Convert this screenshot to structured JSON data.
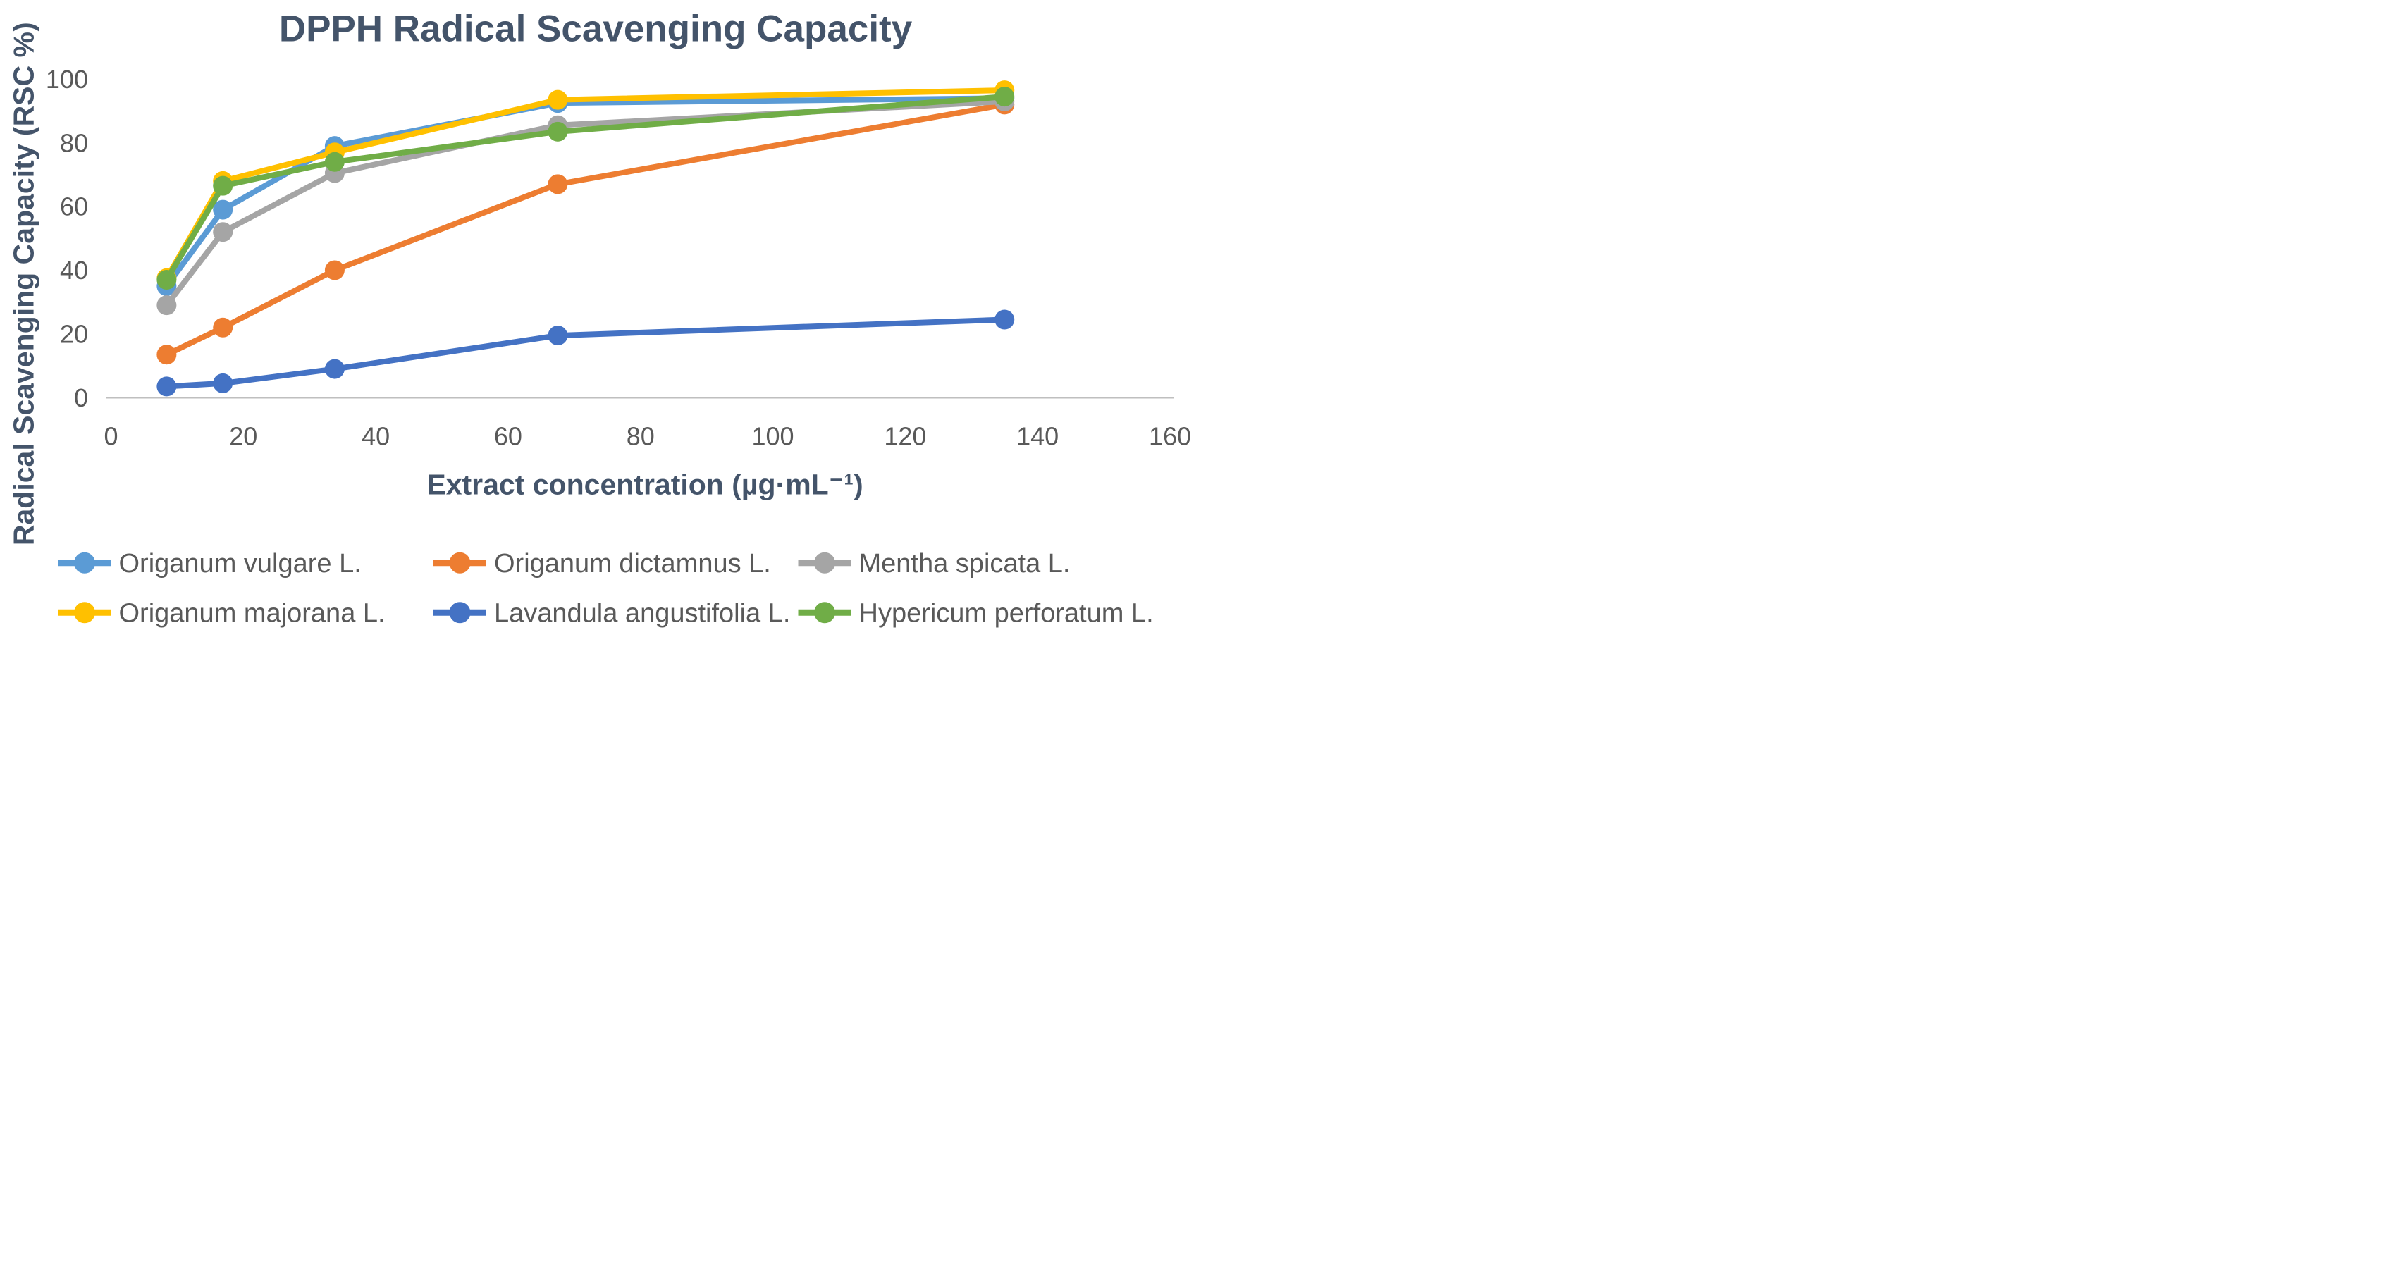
{
  "chart_data": {
    "type": "line",
    "title": "DPPH Radical Scavenging Capacity",
    "xlabel": "Extract concentration (µg·mL⁻¹)",
    "ylabel": "Radical Scavenging Capacity (RSC %)",
    "x": [
      8.4,
      16.9,
      33.8,
      67.5,
      135
    ],
    "xlim": [
      0,
      160
    ],
    "ylim": [
      0,
      100
    ],
    "x_ticks": [
      0,
      20,
      40,
      60,
      80,
      100,
      120,
      140,
      160
    ],
    "y_ticks": [
      0,
      20,
      40,
      60,
      80,
      100
    ],
    "grid": false,
    "legend_position": "bottom",
    "legend_rows": [
      [
        "Origanum vulgare L.",
        "Origanum dictamnus L.",
        "Mentha spicata L."
      ],
      [
        "Origanum majorana L.",
        "Lavandula angustifolia L.",
        "Hypericum perforatum L."
      ]
    ],
    "series": [
      {
        "name": "Origanum vulgare L.",
        "color": "#5B9BD5",
        "values": [
          35,
          59,
          79,
          92.5,
          94
        ]
      },
      {
        "name": "Origanum dictamnus L.",
        "color": "#ED7D31",
        "values": [
          13.5,
          22,
          40,
          67,
          92
        ]
      },
      {
        "name": "Mentha spicata L.",
        "color": "#A5A5A5",
        "values": [
          29,
          52,
          70.5,
          85.5,
          93
        ]
      },
      {
        "name": "Origanum majorana L.",
        "color": "#FFC000",
        "values": [
          37.5,
          68,
          77,
          93.5,
          96.5
        ]
      },
      {
        "name": "Lavandula angustifolia L.",
        "color": "#4472C4",
        "values": [
          3.5,
          4.5,
          9,
          19.5,
          24.5
        ]
      },
      {
        "name": "Hypericum perforatum L.",
        "color": "#70AD47",
        "values": [
          37,
          66.5,
          74,
          83.5,
          94.5
        ]
      }
    ]
  },
  "colors": {
    "title": "#44546A",
    "axis_title": "#44546A",
    "tick_label": "#595959",
    "legend_label": "#595959",
    "axis_line": "#BFBFBF",
    "background": "#FFFFFF"
  }
}
